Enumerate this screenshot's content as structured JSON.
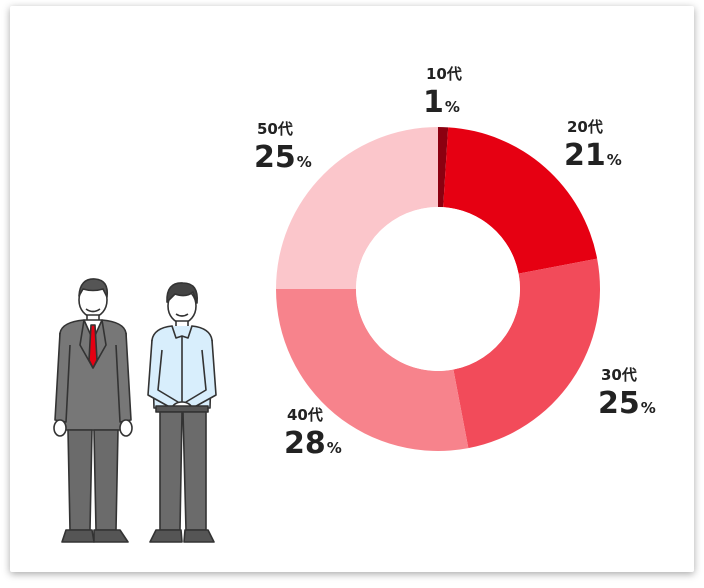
{
  "chart_data": {
    "type": "donut",
    "unit": "%",
    "slices": [
      {
        "label": "10代",
        "value": 1,
        "color": "#8b0010"
      },
      {
        "label": "20代",
        "value": 21,
        "color": "#e60012"
      },
      {
        "label": "30代",
        "value": 25,
        "color": "#f24b5a"
      },
      {
        "label": "40代",
        "value": 28,
        "color": "#f7838c"
      },
      {
        "label": "50代",
        "value": 25,
        "color": "#fbc6cb"
      }
    ]
  },
  "illustration": {
    "left_person": "businessman-in-suit-icon",
    "right_person": "young-man-in-shirt-icon"
  }
}
